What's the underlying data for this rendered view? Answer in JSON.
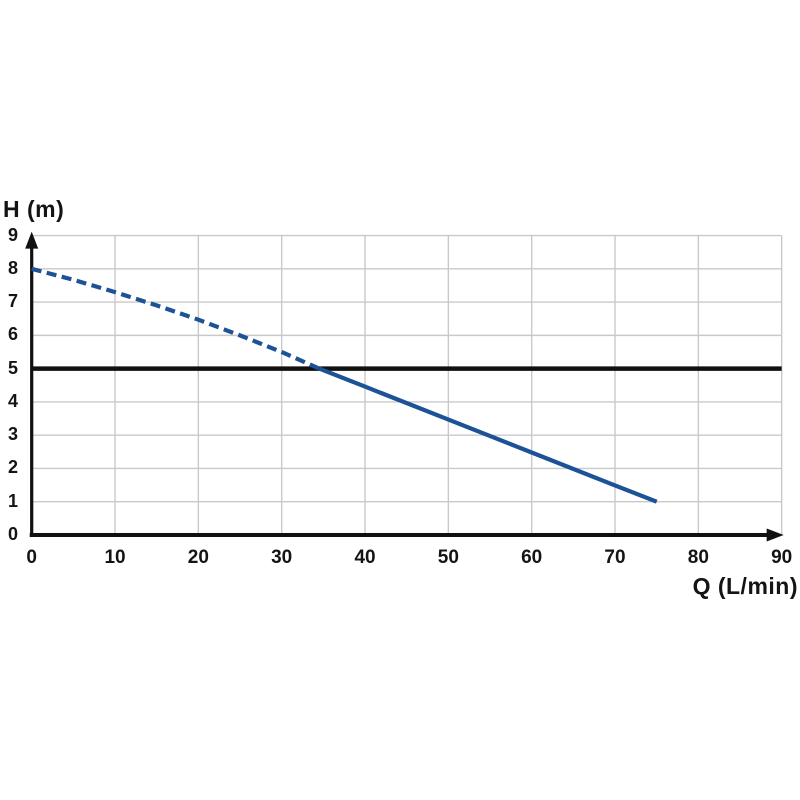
{
  "chart_data": {
    "type": "line",
    "title": "",
    "xlabel": "Q (L/min)",
    "ylabel": "H (m)",
    "xlim": [
      0,
      90
    ],
    "ylim": [
      0,
      9
    ],
    "x_ticks": [
      0,
      10,
      20,
      30,
      40,
      50,
      60,
      70,
      80,
      90
    ],
    "y_ticks": [
      0,
      1,
      2,
      3,
      4,
      5,
      6,
      7,
      8,
      9
    ],
    "grid": true,
    "grid_color": "#c9c9c9",
    "axis_color": "#111111",
    "text_color": "#141414",
    "legend": "none",
    "series": [
      {
        "name": "pump-head-curve",
        "color": "#1c5296",
        "segments": [
          {
            "style": "dashed",
            "points": [
              [
                0,
                8.0
              ],
              [
                5,
                7.67
              ],
              [
                10,
                7.3
              ],
              [
                15,
                6.9
              ],
              [
                20,
                6.47
              ],
              [
                25,
                6.0
              ],
              [
                30,
                5.5
              ],
              [
                34.5,
                5.0
              ]
            ]
          },
          {
            "style": "solid",
            "points": [
              [
                34.5,
                5.0
              ],
              [
                40,
                4.46
              ],
              [
                50,
                3.47
              ],
              [
                60,
                2.48
              ],
              [
                70,
                1.49
              ],
              [
                75,
                1.0
              ]
            ]
          }
        ]
      }
    ],
    "reference_line": {
      "y": 5,
      "color": "#111111",
      "orientation": "horizontal"
    }
  }
}
